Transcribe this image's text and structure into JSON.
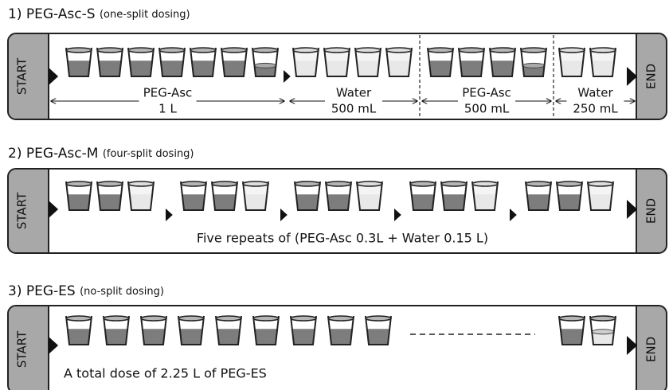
{
  "panels": [
    {
      "number": "1)",
      "name": "PEG-Asc-S",
      "note": "(one-split dosing)",
      "start": "START",
      "end": "END",
      "segments": [
        {
          "label": "PEG-Asc",
          "amount": "1 L"
        },
        {
          "label": "Water",
          "amount": "500 mL"
        },
        {
          "label": "PEG-Asc",
          "amount": "500 mL"
        },
        {
          "label": "Water",
          "amount": "250 mL"
        }
      ]
    },
    {
      "number": "2)",
      "name": "PEG-Asc-M",
      "note": "(four-split dosing)",
      "start": "START",
      "end": "END",
      "caption": "Five repeats of (PEG-Asc 0.3L + Water 0.15 L)"
    },
    {
      "number": "3)",
      "name": "PEG-ES",
      "note": "(no-split dosing)",
      "start": "START",
      "end": "END",
      "caption": "A total dose of 2.25 L of PEG-ES"
    }
  ]
}
